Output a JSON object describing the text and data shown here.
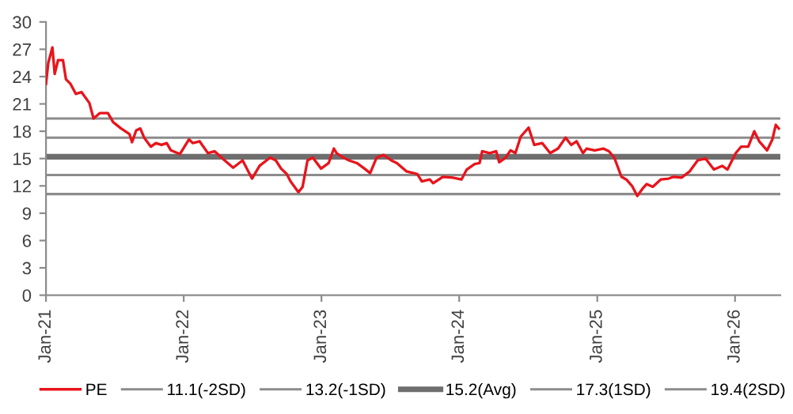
{
  "chart_data": {
    "type": "line",
    "xlim": [
      "2021-01-01",
      "2026-05-01"
    ],
    "xticks": [
      {
        "value": "2021-01-01",
        "label": "Jan-21"
      },
      {
        "value": "2022-01-01",
        "label": "Jan-22"
      },
      {
        "value": "2023-01-01",
        "label": "Jan-23"
      },
      {
        "value": "2024-01-01",
        "label": "Jan-24"
      },
      {
        "value": "2025-01-01",
        "label": "Jan-25"
      },
      {
        "value": "2026-01-01",
        "label": "Jan-26"
      }
    ],
    "ylim": [
      0,
      30
    ],
    "yticks": [
      0,
      3,
      6,
      9,
      12,
      15,
      18,
      21,
      24,
      27,
      30
    ],
    "grid": false,
    "legend": "bottom",
    "marker": "none",
    "line_style": "solid",
    "series": [
      {
        "name": "PE",
        "color": "#e8141c",
        "x": [
          "2021-01-01",
          "2021-01-07",
          "2021-01-18",
          "2021-01-24",
          "2021-02-02",
          "2021-02-15",
          "2021-02-23",
          "2021-03-07",
          "2021-03-21",
          "2021-04-05",
          "2021-04-26",
          "2021-05-07",
          "2021-05-24",
          "2021-06-14",
          "2021-06-28",
          "2021-07-19",
          "2021-08-10",
          "2021-08-17",
          "2021-08-28",
          "2021-09-08",
          "2021-09-18",
          "2021-10-06",
          "2021-10-19",
          "2021-11-03",
          "2021-11-17",
          "2021-11-28",
          "2021-12-22",
          "2022-01-15",
          "2022-01-25",
          "2022-02-12",
          "2022-03-06",
          "2022-03-24",
          "2022-04-14",
          "2022-05-12",
          "2022-06-06",
          "2022-07-01",
          "2022-07-21",
          "2022-08-18",
          "2022-09-02",
          "2022-09-16",
          "2022-10-01",
          "2022-10-11",
          "2022-11-01",
          "2022-11-12",
          "2022-11-25",
          "2022-12-09",
          "2022-12-31",
          "2023-01-20",
          "2023-02-03",
          "2023-02-10",
          "2023-02-28",
          "2023-03-15",
          "2023-04-05",
          "2023-04-25",
          "2023-05-10",
          "2023-05-27",
          "2023-06-15",
          "2023-07-05",
          "2023-07-20",
          "2023-08-14",
          "2023-09-12",
          "2023-09-24",
          "2023-10-15",
          "2023-10-24",
          "2023-11-19",
          "2023-12-15",
          "2024-01-07",
          "2024-01-21",
          "2024-02-11",
          "2024-02-24",
          "2024-03-02",
          "2024-03-22",
          "2024-04-08",
          "2024-04-16",
          "2024-05-03",
          "2024-05-16",
          "2024-05-29",
          "2024-06-12",
          "2024-07-03",
          "2024-07-18",
          "2024-08-08",
          "2024-08-29",
          "2024-09-19",
          "2024-10-09",
          "2024-10-24",
          "2024-11-07",
          "2024-11-24",
          "2024-12-04",
          "2024-12-25",
          "2025-01-17",
          "2025-02-01",
          "2025-02-15",
          "2025-03-06",
          "2025-03-19",
          "2025-04-03",
          "2025-04-17",
          "2025-05-01",
          "2025-05-12",
          "2025-05-28",
          "2025-06-18",
          "2025-07-09",
          "2025-07-22",
          "2025-08-12",
          "2025-09-03",
          "2025-09-24",
          "2025-10-15",
          "2025-11-06",
          "2025-11-28",
          "2025-12-12",
          "2026-01-03",
          "2026-01-17",
          "2026-02-05",
          "2026-02-21",
          "2026-03-06",
          "2026-03-27",
          "2026-04-10",
          "2026-04-19",
          "2026-04-27"
        ],
        "values": [
          23.2,
          25.5,
          27.2,
          24.3,
          25.8,
          25.8,
          23.7,
          23.2,
          22.1,
          22.3,
          21.1,
          19.4,
          20.0,
          20.0,
          19.0,
          18.3,
          17.7,
          16.8,
          18.1,
          18.3,
          17.3,
          16.3,
          16.7,
          16.5,
          16.7,
          15.9,
          15.5,
          17.1,
          16.7,
          16.9,
          15.6,
          15.8,
          15.0,
          14.0,
          14.8,
          12.8,
          14.2,
          15.1,
          14.8,
          13.9,
          13.3,
          12.5,
          11.3,
          11.9,
          14.8,
          15.1,
          13.9,
          14.5,
          16.1,
          15.6,
          15.1,
          14.8,
          14.5,
          13.9,
          13.4,
          15.1,
          15.4,
          14.8,
          14.5,
          13.6,
          13.3,
          12.5,
          12.7,
          12.3,
          13.0,
          12.9,
          12.7,
          13.8,
          14.4,
          14.5,
          15.8,
          15.6,
          15.8,
          14.6,
          15.1,
          15.9,
          15.6,
          17.4,
          18.4,
          16.5,
          16.7,
          15.6,
          16.1,
          17.3,
          16.5,
          16.9,
          15.6,
          16.1,
          15.9,
          16.1,
          15.8,
          15.1,
          13.0,
          12.7,
          12.0,
          10.9,
          11.7,
          12.2,
          11.9,
          12.7,
          12.8,
          13.0,
          12.9,
          13.6,
          14.8,
          15.0,
          13.8,
          14.2,
          13.8,
          15.6,
          16.3,
          16.3,
          18.0,
          16.9,
          15.9,
          17.1,
          18.7,
          18.3
        ]
      },
      {
        "name": "11.1(-2SD)",
        "color": "#8c8c8c",
        "x": [
          "2021-01-01",
          "2026-05-01"
        ],
        "values": [
          11.1,
          11.1
        ]
      },
      {
        "name": "13.2(-1SD)",
        "color": "#8c8c8c",
        "x": [
          "2021-01-01",
          "2026-05-01"
        ],
        "values": [
          13.2,
          13.2
        ]
      },
      {
        "name": "15.2(Avg)",
        "color": "#6e6e6e",
        "x": [
          "2021-01-01",
          "2026-05-01"
        ],
        "values": [
          15.2,
          15.2
        ]
      },
      {
        "name": "17.3(1SD)",
        "color": "#8c8c8c",
        "x": [
          "2021-01-01",
          "2026-05-01"
        ],
        "values": [
          17.3,
          17.3
        ]
      },
      {
        "name": "19.4(2SD)",
        "color": "#8c8c8c",
        "x": [
          "2021-01-01",
          "2026-05-01"
        ],
        "values": [
          19.4,
          19.4
        ]
      }
    ]
  }
}
